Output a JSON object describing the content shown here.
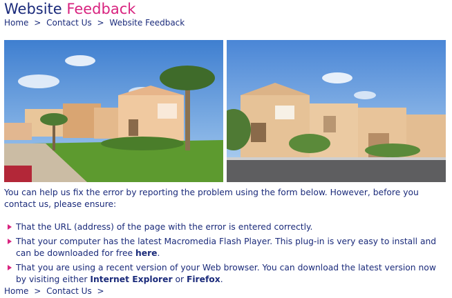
{
  "page": {
    "title_part1": "Website ",
    "title_part2": "Feedback"
  },
  "breadcrumb_top": [
    "Home",
    "Contact Us",
    "Website Feedback"
  ],
  "breadcrumb_bottom": [
    "Home",
    "Contact Us"
  ],
  "intro_text": "You can help us fix the error by reporting the problem using the form below. However, before you contact us, please ensure:",
  "list": {
    "item1": "That the URL (address) of the page with the error is entered correctly.",
    "item2_text": "That your computer has the latest Macromedia Flash Player. This plug-in is very easy to install and can be downloaded for free ",
    "item2_link": "here",
    "item2_end": ".",
    "item3_text": "That you are using a recent version of your Web browser. You can download the latest version now by visiting either ",
    "item3_link1": "Internet Explorer",
    "item3_mid": " or ",
    "item3_link2": "Firefox",
    "item3_end": "."
  },
  "separator": ">",
  "colors": {
    "navy": "#1a2a7a",
    "accent": "#d8237f"
  }
}
